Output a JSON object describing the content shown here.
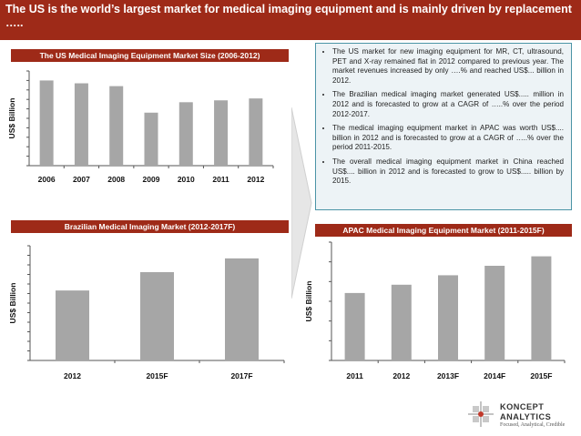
{
  "header": {
    "title": "The US is the world’s largest market for medical imaging equipment and is mainly driven by replacement ….."
  },
  "panels": {
    "us": {
      "title": "The US Medical Imaging Equipment Market Size (2006-2012)"
    },
    "brazil": {
      "title": "Brazilian Medical Imaging Market (2012-2017F)"
    },
    "apac": {
      "title": "APAC Medical Imaging Equipment Market (2011-2015F)"
    }
  },
  "notes": [
    "The US market for new imaging equipment for MR, CT, ultrasound, PET and X-ray remained flat in 2012 compared to previous year. The market revenues increased by only ….% and reached US$... billion in 2012.",
    "The Brazilian medical imaging market generated US$..... million in 2012 and is forecasted to grow at a CAGR of …..% over the period 2012-2017.",
    "The medical imaging equipment market in APAC was worth US$.... billion in 2012 and is forecasted to grow at a CAGR of …..% over the period 2011-2015.",
    "The overall medical imaging equipment market in China reached US$.... billion in 2012 and is forecasted to grow to US$..... billion by 2015."
  ],
  "logo": {
    "name_line1": "KONCEPT",
    "name_line2": "ANALYTICS",
    "tagline": "Focused, Analytical, Credible"
  },
  "colors": {
    "accent": "#9e2a18",
    "bar": "#a6a6a6",
    "note_border": "#4b94a6",
    "note_bg": "#edf3f6"
  },
  "chart_data": [
    {
      "type": "bar",
      "title": "The US Medical Imaging Equipment Market Size (2006-2012)",
      "xlabel": "",
      "ylabel": "US$ Billion",
      "categories": [
        "2006",
        "2007",
        "2008",
        "2009",
        "2010",
        "2011",
        "2012"
      ],
      "values": [
        0.9,
        0.87,
        0.84,
        0.56,
        0.67,
        0.69,
        0.71
      ],
      "ylim": [
        0,
        1
      ],
      "grid": false
    },
    {
      "type": "bar",
      "title": "Brazilian Medical Imaging Market (2012-2017F)",
      "xlabel": "",
      "ylabel": "US$ Billion",
      "categories": [
        "2012",
        "2015F",
        "2017F"
      ],
      "values": [
        0.61,
        0.77,
        0.89
      ],
      "ylim": [
        0,
        1
      ],
      "grid": false
    },
    {
      "type": "bar",
      "title": "APAC Medical Imaging Equipment Market (2011-2015F)",
      "xlabel": "",
      "ylabel": "US$ Billion",
      "categories": [
        "2011",
        "2012",
        "2013F",
        "2014F",
        "2015F"
      ],
      "values": [
        0.57,
        0.64,
        0.72,
        0.8,
        0.88
      ],
      "ylim": [
        0,
        1
      ],
      "grid": false
    }
  ]
}
